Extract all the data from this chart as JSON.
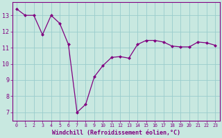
{
  "x": [
    0,
    1,
    2,
    3,
    4,
    5,
    6,
    7,
    8,
    9,
    10,
    11,
    12,
    13,
    14,
    15,
    16,
    17,
    18,
    19,
    20,
    21,
    22,
    23
  ],
  "y": [
    13.4,
    13.0,
    13.0,
    11.8,
    13.0,
    12.5,
    11.2,
    7.0,
    7.5,
    9.2,
    9.9,
    10.4,
    10.45,
    10.35,
    11.2,
    11.45,
    11.45,
    11.35,
    11.1,
    11.05,
    11.05,
    11.35,
    11.3,
    11.15
  ],
  "line_color": "#800080",
  "marker_color": "#800080",
  "bg_color": "#c8e8e0",
  "grid_color": "#99cccc",
  "axis_color": "#800080",
  "xlabel": "Windchill (Refroidissement éolien,°C)",
  "ylim": [
    6.5,
    13.8
  ],
  "xlim": [
    -0.5,
    23.5
  ],
  "yticks": [
    7,
    8,
    9,
    10,
    11,
    12,
    13
  ],
  "xticks": [
    0,
    1,
    2,
    3,
    4,
    5,
    6,
    7,
    8,
    9,
    10,
    11,
    12,
    13,
    14,
    15,
    16,
    17,
    18,
    19,
    20,
    21,
    22,
    23
  ]
}
